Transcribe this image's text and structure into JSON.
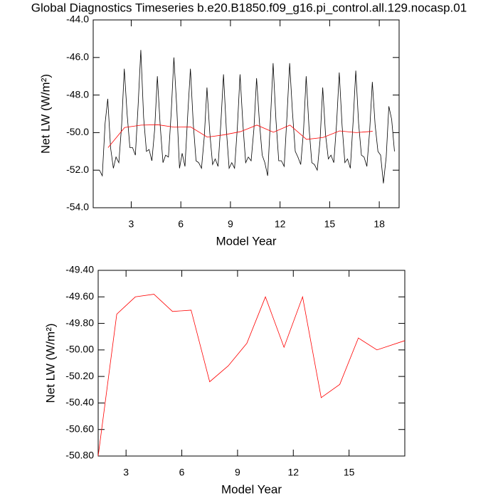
{
  "chart_data": [
    {
      "type": "line",
      "title": "Global Diagnostics Timeseries b.e20.B1850.f09_g16.pi_control.all.129.nocasp.01",
      "xlabel": "Model Year",
      "ylabel": "Net LW (W/m²)",
      "xlim": [
        0.7,
        19.2
      ],
      "ylim": [
        -54,
        -44
      ],
      "xticks": [
        3,
        6,
        9,
        12,
        15,
        18
      ],
      "yticks": [
        {
          "value": -54,
          "label": "-54.0"
        },
        {
          "value": -52,
          "label": "-52.0"
        },
        {
          "value": -50,
          "label": "-50.0"
        },
        {
          "value": -48,
          "label": "-48.0"
        },
        {
          "value": -46,
          "label": "-46.0"
        },
        {
          "value": -44,
          "label": "-44.0"
        }
      ],
      "series": [
        {
          "color": "#000000",
          "x": [
            1.08,
            1.25,
            1.42,
            1.58,
            1.75,
            1.92,
            2.08,
            2.25,
            2.42,
            2.58,
            2.75,
            2.92,
            3.08,
            3.25,
            3.42,
            3.58,
            3.75,
            3.92,
            4.08,
            4.25,
            4.42,
            4.58,
            4.75,
            4.92,
            5.08,
            5.25,
            5.42,
            5.58,
            5.75,
            5.92,
            6.08,
            6.25,
            6.42,
            6.58,
            6.75,
            6.92,
            7.08,
            7.25,
            7.42,
            7.58,
            7.75,
            7.92,
            8.08,
            8.25,
            8.42,
            8.58,
            8.75,
            8.92,
            9.08,
            9.25,
            9.42,
            9.58,
            9.75,
            9.92,
            10.08,
            10.25,
            10.42,
            10.58,
            10.75,
            10.92,
            11.08,
            11.25,
            11.42,
            11.58,
            11.75,
            11.92,
            12.08,
            12.25,
            12.42,
            12.58,
            12.75,
            12.92,
            13.08,
            13.25,
            13.42,
            13.58,
            13.75,
            13.92,
            14.08,
            14.25,
            14.42,
            14.58,
            14.75,
            14.92,
            15.08,
            15.25,
            15.42,
            15.58,
            15.75,
            15.92,
            16.08,
            16.25,
            16.42,
            16.58,
            16.75,
            16.92,
            17.08,
            17.25,
            17.42,
            17.58,
            17.75,
            17.92,
            18.08,
            18.25,
            18.42,
            18.58,
            18.75,
            18.92
          ],
          "values": [
            -52.0,
            -52.3,
            -49.5,
            -48.2,
            -50.8,
            -51.9,
            -51.3,
            -51.6,
            -49.6,
            -46.6,
            -49.0,
            -50.8,
            -50.8,
            -51.2,
            -48.5,
            -45.6,
            -49.2,
            -51.0,
            -50.9,
            -51.5,
            -49.8,
            -47.0,
            -49.6,
            -51.6,
            -51.2,
            -51.3,
            -48.9,
            -46.0,
            -48.6,
            -51.9,
            -51.1,
            -51.8,
            -49.0,
            -46.6,
            -49.5,
            -51.5,
            -51.6,
            -51.9,
            -50.2,
            -47.6,
            -50.0,
            -51.7,
            -51.4,
            -51.8,
            -49.5,
            -46.9,
            -49.8,
            -51.9,
            -51.6,
            -51.9,
            -49.7,
            -46.9,
            -49.5,
            -51.6,
            -51.3,
            -51.5,
            -49.8,
            -47.1,
            -49.4,
            -51.2,
            -51.6,
            -52.3,
            -49.3,
            -46.3,
            -49.3,
            -51.5,
            -51.5,
            -51.8,
            -49.1,
            -46.3,
            -48.9,
            -51.0,
            -51.3,
            -51.7,
            -49.9,
            -47.0,
            -49.7,
            -51.6,
            -51.7,
            -52.0,
            -50.4,
            -47.6,
            -50.1,
            -51.4,
            -51.2,
            -51.6,
            -49.5,
            -46.8,
            -49.6,
            -51.6,
            -51.4,
            -51.9,
            -49.4,
            -46.7,
            -49.5,
            -51.2,
            -51.3,
            -51.8,
            -49.9,
            -47.3,
            -49.6,
            -51.0,
            -51.2,
            -52.7,
            -51.3,
            -48.6,
            -49.3,
            -51.0
          ]
        },
        {
          "color": "#ff0000",
          "x": [
            1.6,
            2.6,
            3.6,
            4.6,
            5.6,
            6.6,
            7.6,
            8.6,
            9.6,
            10.6,
            11.6,
            12.6,
            13.6,
            14.6,
            15.6,
            16.6,
            17.6
          ],
          "values": [
            -50.8,
            -49.73,
            -49.6,
            -49.58,
            -49.71,
            -49.7,
            -50.24,
            -50.12,
            -49.95,
            -49.6,
            -49.98,
            -49.6,
            -50.36,
            -50.26,
            -49.91,
            -50.0,
            -49.93
          ]
        }
      ]
    },
    {
      "type": "line",
      "xlabel": "Model Year",
      "ylabel": "Net LW (W/m²)",
      "xlim": [
        1.5,
        18
      ],
      "ylim": [
        -50.8,
        -49.4
      ],
      "xticks": [
        3,
        6,
        9,
        12,
        15
      ],
      "yticks": [
        {
          "value": -50.8,
          "label": "-50.80"
        },
        {
          "value": -50.6,
          "label": "-50.60"
        },
        {
          "value": -50.4,
          "label": "-50.40"
        },
        {
          "value": -50.2,
          "label": "-50.20"
        },
        {
          "value": -50.0,
          "label": "-50.00"
        },
        {
          "value": -49.8,
          "label": "-49.80"
        },
        {
          "value": -49.6,
          "label": "-49.60"
        },
        {
          "value": -49.4,
          "label": "-49.40"
        }
      ],
      "series": [
        {
          "color": "#ff0000",
          "x": [
            1.5,
            2.5,
            3.5,
            4.5,
            5.5,
            6.5,
            7.5,
            8.5,
            9.5,
            10.5,
            11.5,
            12.5,
            13.5,
            14.5,
            15.5,
            16.5,
            18
          ],
          "values": [
            -50.8,
            -49.73,
            -49.6,
            -49.58,
            -49.71,
            -49.7,
            -50.24,
            -50.12,
            -49.95,
            -49.6,
            -49.98,
            -49.6,
            -50.36,
            -50.26,
            -49.91,
            -50.0,
            -49.93
          ]
        }
      ]
    }
  ]
}
